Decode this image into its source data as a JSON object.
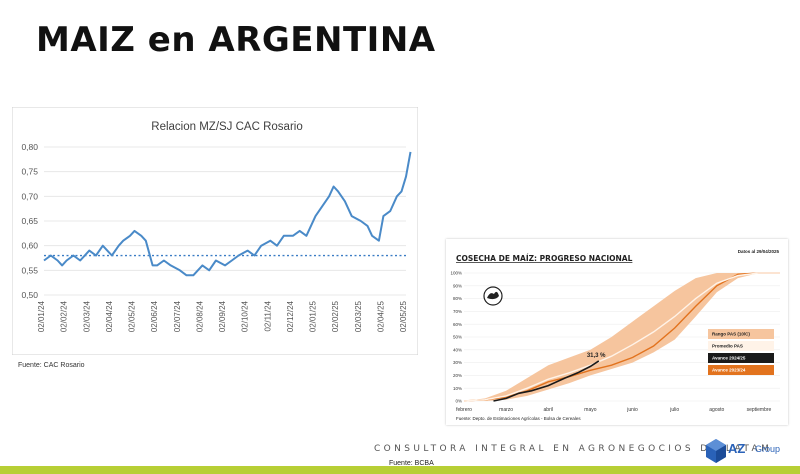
{
  "slide_title": "MAIZ en ARGENTINA",
  "footer": {
    "consultora": "CONSULTORA INTEGRAL EN AGRONEGOCIOS DE LATAM",
    "source": "Fuente: BCBA",
    "logo_main": "AZ",
    "logo_sub": "Group",
    "bar_color": "#b7cf35",
    "logo_color": "#2a62b8"
  },
  "chart_data": [
    {
      "type": "line",
      "title": "Relacion MZ/SJ CAC Rosario",
      "source": "Fuente: CAC Rosario",
      "ylim": [
        0.5,
        0.8
      ],
      "y_ticks": [
        "0,80",
        "0,75",
        "0,70",
        "0,65",
        "0,60",
        "0,55",
        "0,50"
      ],
      "x_ticks": [
        "02/01/24",
        "02/02/24",
        "02/03/24",
        "02/04/24",
        "02/05/24",
        "02/06/24",
        "02/07/24",
        "02/08/24",
        "02/09/24",
        "02/10/24",
        "02/11/24",
        "02/12/24",
        "02/01/25",
        "02/02/25",
        "02/03/25",
        "02/04/25",
        "02/05/25"
      ],
      "grid": true,
      "line_color": "#4a8ac8",
      "average": 0.58,
      "series": [
        {
          "x": [
            0,
            0.3,
            0.6,
            0.8,
            1,
            1.3,
            1.6,
            2,
            2.3,
            2.6,
            2.8,
            3,
            3.3,
            3.5,
            3.8,
            4,
            4.3,
            4.5,
            4.8,
            5,
            5.3,
            5.6,
            6,
            6.3,
            6.6,
            7,
            7.3,
            7.6,
            8,
            8.3,
            8.6,
            9,
            9.3,
            9.6,
            10,
            10.3,
            10.6,
            11,
            11.3,
            11.6,
            12,
            12.3,
            12.6,
            12.8,
            13,
            13.3,
            13.6,
            14,
            14.3,
            14.5,
            14.8,
            15,
            15.3,
            15.6,
            15.8,
            16,
            16.2
          ],
          "values": [
            0.57,
            0.58,
            0.57,
            0.56,
            0.57,
            0.58,
            0.57,
            0.59,
            0.58,
            0.6,
            0.59,
            0.58,
            0.6,
            0.61,
            0.62,
            0.63,
            0.62,
            0.61,
            0.56,
            0.56,
            0.57,
            0.56,
            0.55,
            0.54,
            0.54,
            0.56,
            0.55,
            0.57,
            0.56,
            0.57,
            0.58,
            0.59,
            0.58,
            0.6,
            0.61,
            0.6,
            0.62,
            0.62,
            0.63,
            0.62,
            0.66,
            0.68,
            0.7,
            0.72,
            0.71,
            0.69,
            0.66,
            0.65,
            0.64,
            0.62,
            0.61,
            0.66,
            0.67,
            0.7,
            0.71,
            0.74,
            0.79
          ]
        }
      ]
    },
    {
      "type": "area",
      "title": "COSECHA DE MAÍZ: PROGRESO NACIONAL",
      "date_note": "Datos al 29/04/2025",
      "source": "Fuente: Depto. de Estimaciones Agrícolas - Bolsa de Cereales",
      "annotation": "31,3 %",
      "x_ticks": [
        "febrero",
        "marzo",
        "abril",
        "mayo",
        "junio",
        "julio",
        "agosto",
        "septiembre"
      ],
      "y_ticks": [
        "100%",
        "90%",
        "80%",
        "70%",
        "60%",
        "50%",
        "40%",
        "30%",
        "20%",
        "10%",
        "0%"
      ],
      "ylim": [
        0,
        100
      ],
      "legend": [
        "Rango PAS (10/C)",
        "Promedio PAS",
        "Avance 2024/25",
        "Avance 2023/24"
      ],
      "colors": {
        "range": "#f6c59e",
        "average": "#fff3e8",
        "current": "#1a1a1a",
        "previous": "#e2731e"
      },
      "series": [
        {
          "name": "Rango PAS (10/C)",
          "x": [
            0,
            0.5,
            1,
            1.5,
            2,
            2.5,
            3,
            3.5,
            4,
            4.5,
            5,
            5.5,
            6,
            6.5,
            7,
            7.5
          ],
          "low": [
            0,
            0,
            1,
            4,
            9,
            14,
            20,
            25,
            30,
            38,
            48,
            66,
            85,
            96,
            100,
            100
          ],
          "high": [
            0,
            2,
            8,
            18,
            28,
            34,
            40,
            50,
            62,
            74,
            86,
            96,
            100,
            100,
            100,
            100
          ]
        },
        {
          "name": "Promedio PAS",
          "x": [
            0,
            0.5,
            1,
            1.5,
            2,
            2.5,
            3,
            3.5,
            4,
            4.5,
            5,
            5.5,
            6,
            6.5,
            7,
            7.5
          ],
          "values": [
            0,
            1,
            4,
            10,
            17,
            22,
            28,
            35,
            44,
            54,
            66,
            80,
            92,
            98,
            100,
            100
          ]
        },
        {
          "name": "Avance 2024/25",
          "x": [
            0.7,
            1,
            1.3,
            1.6,
            2,
            2.4,
            2.7,
            3,
            3.2
          ],
          "values": [
            0,
            2,
            6,
            8,
            12,
            18,
            22,
            27,
            31.3
          ]
        },
        {
          "name": "Avance 2023/24",
          "x": [
            0,
            0.5,
            1,
            1.5,
            2,
            2.5,
            3,
            3.5,
            4,
            4.5,
            5,
            5.5,
            6,
            6.5,
            7,
            7.5
          ],
          "values": [
            0,
            1,
            3,
            8,
            15,
            19,
            24,
            28,
            34,
            43,
            57,
            74,
            90,
            99,
            100,
            100
          ]
        }
      ]
    }
  ]
}
